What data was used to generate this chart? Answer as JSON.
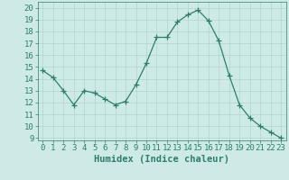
{
  "x": [
    0,
    1,
    2,
    3,
    4,
    5,
    6,
    7,
    8,
    9,
    10,
    11,
    12,
    13,
    14,
    15,
    16,
    17,
    18,
    19,
    20,
    21,
    22,
    23
  ],
  "y": [
    14.7,
    14.1,
    13.0,
    11.8,
    13.0,
    12.8,
    12.3,
    11.8,
    12.1,
    13.5,
    15.3,
    17.5,
    17.5,
    18.8,
    19.4,
    19.8,
    18.9,
    17.2,
    14.3,
    11.8,
    10.7,
    10.0,
    9.5,
    9.0
  ],
  "line_color": "#2e7d6e",
  "marker": "+",
  "marker_size": 4,
  "bg_color": "#ceeae7",
  "grid_color": "#b0d4d0",
  "xlabel": "Humidex (Indice chaleur)",
  "ylim": [
    8.8,
    20.5
  ],
  "xlim": [
    -0.5,
    23.5
  ],
  "yticks": [
    9,
    10,
    11,
    12,
    13,
    14,
    15,
    16,
    17,
    18,
    19,
    20
  ],
  "xticks": [
    0,
    1,
    2,
    3,
    4,
    5,
    6,
    7,
    8,
    9,
    10,
    11,
    12,
    13,
    14,
    15,
    16,
    17,
    18,
    19,
    20,
    21,
    22,
    23
  ],
  "axis_color": "#2e7d6e",
  "tick_color": "#2e7d6e",
  "label_fontsize": 7.5,
  "tick_fontsize": 6.5,
  "linewidth": 0.9,
  "markeredgewidth": 0.9
}
